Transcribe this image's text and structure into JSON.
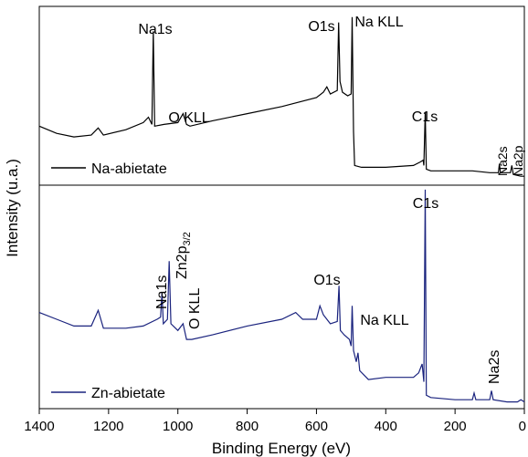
{
  "chart_data": {
    "type": "line",
    "xlabel": "Binding Energy (eV)",
    "ylabel": "Intensity (u.a.)",
    "xlim": [
      1400,
      0
    ],
    "x_ticks": [
      1400,
      1200,
      1000,
      800,
      600,
      400,
      200,
      0
    ],
    "x_tick_labels": [
      "1400",
      "1200",
      "1000",
      "800",
      "600",
      "400",
      "200",
      "0"
    ],
    "grid": false,
    "legend_placement": "bottom-left of each panel",
    "panels": [
      {
        "name": "Na-abietate",
        "color": "#000000",
        "ylim": [
          0,
          100
        ],
        "points": [
          [
            1400,
            33
          ],
          [
            1350,
            29
          ],
          [
            1300,
            27
          ],
          [
            1250,
            28
          ],
          [
            1230,
            32
          ],
          [
            1215,
            28
          ],
          [
            1150,
            31
          ],
          [
            1100,
            35
          ],
          [
            1085,
            38
          ],
          [
            1075,
            34
          ],
          [
            1071,
            86
          ],
          [
            1067,
            33
          ],
          [
            1040,
            34
          ],
          [
            1000,
            35
          ],
          [
            985,
            40
          ],
          [
            975,
            34
          ],
          [
            965,
            33
          ],
          [
            900,
            36
          ],
          [
            800,
            40
          ],
          [
            700,
            44
          ],
          [
            600,
            49
          ],
          [
            580,
            52
          ],
          [
            570,
            55
          ],
          [
            560,
            51
          ],
          [
            540,
            53
          ],
          [
            536,
            91
          ],
          [
            532,
            58
          ],
          [
            525,
            52
          ],
          [
            510,
            50
          ],
          [
            500,
            51
          ],
          [
            497,
            94
          ],
          [
            493,
            30
          ],
          [
            490,
            11
          ],
          [
            470,
            10
          ],
          [
            400,
            10
          ],
          [
            320,
            11
          ],
          [
            300,
            13
          ],
          [
            292,
            14
          ],
          [
            290,
            11
          ],
          [
            286,
            41
          ],
          [
            283,
            9
          ],
          [
            270,
            8
          ],
          [
            200,
            8
          ],
          [
            150,
            8
          ],
          [
            100,
            7
          ],
          [
            75,
            7
          ],
          [
            72,
            12
          ],
          [
            69,
            7
          ],
          [
            40,
            7
          ],
          [
            36,
            11
          ],
          [
            32,
            6
          ],
          [
            10,
            5
          ],
          [
            0,
            5
          ]
        ],
        "annotations": [
          {
            "text": "Na1s",
            "x": 1071
          },
          {
            "text": "O KLL",
            "x": 985
          },
          {
            "text": "O1s",
            "x": 536
          },
          {
            "text": "Na KLL",
            "x": 497
          },
          {
            "text": "C1s",
            "x": 286
          },
          {
            "text": "Na2s",
            "x": 72
          },
          {
            "text": "Na2p",
            "x": 36
          }
        ]
      },
      {
        "name": "Zn-abietate",
        "color": "#1a237e",
        "ylim": [
          0,
          100
        ],
        "points": [
          [
            1400,
            43
          ],
          [
            1350,
            40
          ],
          [
            1300,
            37
          ],
          [
            1250,
            37
          ],
          [
            1230,
            44
          ],
          [
            1215,
            36
          ],
          [
            1150,
            36
          ],
          [
            1100,
            37
          ],
          [
            1060,
            40
          ],
          [
            1050,
            41
          ],
          [
            1046,
            52
          ],
          [
            1042,
            38
          ],
          [
            1030,
            40
          ],
          [
            1025,
            66
          ],
          [
            1020,
            38
          ],
          [
            1000,
            35
          ],
          [
            985,
            38
          ],
          [
            975,
            31
          ],
          [
            960,
            31
          ],
          [
            900,
            33
          ],
          [
            800,
            37
          ],
          [
            700,
            40
          ],
          [
            660,
            43
          ],
          [
            640,
            40
          ],
          [
            600,
            40
          ],
          [
            590,
            46
          ],
          [
            580,
            42
          ],
          [
            560,
            38
          ],
          [
            540,
            39
          ],
          [
            535,
            55
          ],
          [
            531,
            35
          ],
          [
            520,
            33
          ],
          [
            505,
            31
          ],
          [
            500,
            28
          ],
          [
            497,
            46
          ],
          [
            493,
            26
          ],
          [
            485,
            21
          ],
          [
            480,
            25
          ],
          [
            475,
            17
          ],
          [
            450,
            13
          ],
          [
            400,
            14
          ],
          [
            320,
            14
          ],
          [
            305,
            16
          ],
          [
            295,
            20
          ],
          [
            290,
            12
          ],
          [
            286,
            98
          ],
          [
            283,
            6
          ],
          [
            270,
            5
          ],
          [
            200,
            4
          ],
          [
            150,
            4
          ],
          [
            145,
            7
          ],
          [
            140,
            4
          ],
          [
            100,
            4
          ],
          [
            95,
            8
          ],
          [
            90,
            4
          ],
          [
            50,
            3
          ],
          [
            20,
            3
          ],
          [
            10,
            4
          ],
          [
            0,
            3
          ]
        ],
        "annotations": [
          {
            "text": "Na1s",
            "x": 1046
          },
          {
            "text": "Zn2p3/2",
            "x": 1025
          },
          {
            "text": "O KLL",
            "x": 975
          },
          {
            "text": "O1s",
            "x": 535
          },
          {
            "text": "Na KLL",
            "x": 497
          },
          {
            "text": "C1s",
            "x": 286
          },
          {
            "text": "Na2s",
            "x": 95
          }
        ]
      }
    ]
  }
}
